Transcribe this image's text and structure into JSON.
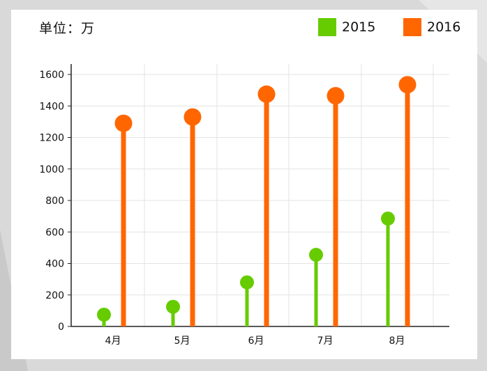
{
  "unit_label": "单位：万",
  "colors": {
    "2015": "#66cc00",
    "2016": "#ff6600"
  },
  "chart_data": {
    "type": "lollipop-bar",
    "categories": [
      "4月",
      "5月",
      "6月",
      "7月",
      "8月"
    ],
    "series": [
      {
        "name": "2015",
        "values": [
          75,
          125,
          280,
          455,
          685
        ]
      },
      {
        "name": "2016",
        "values": [
          1290,
          1330,
          1475,
          1465,
          1535
        ]
      }
    ],
    "ylim": [
      0,
      1600
    ],
    "yticks": [
      "0",
      "200",
      "400",
      "600",
      "800",
      "1000",
      "1200",
      "1400",
      "1600"
    ],
    "grid": true,
    "legend_position": "top-right"
  }
}
